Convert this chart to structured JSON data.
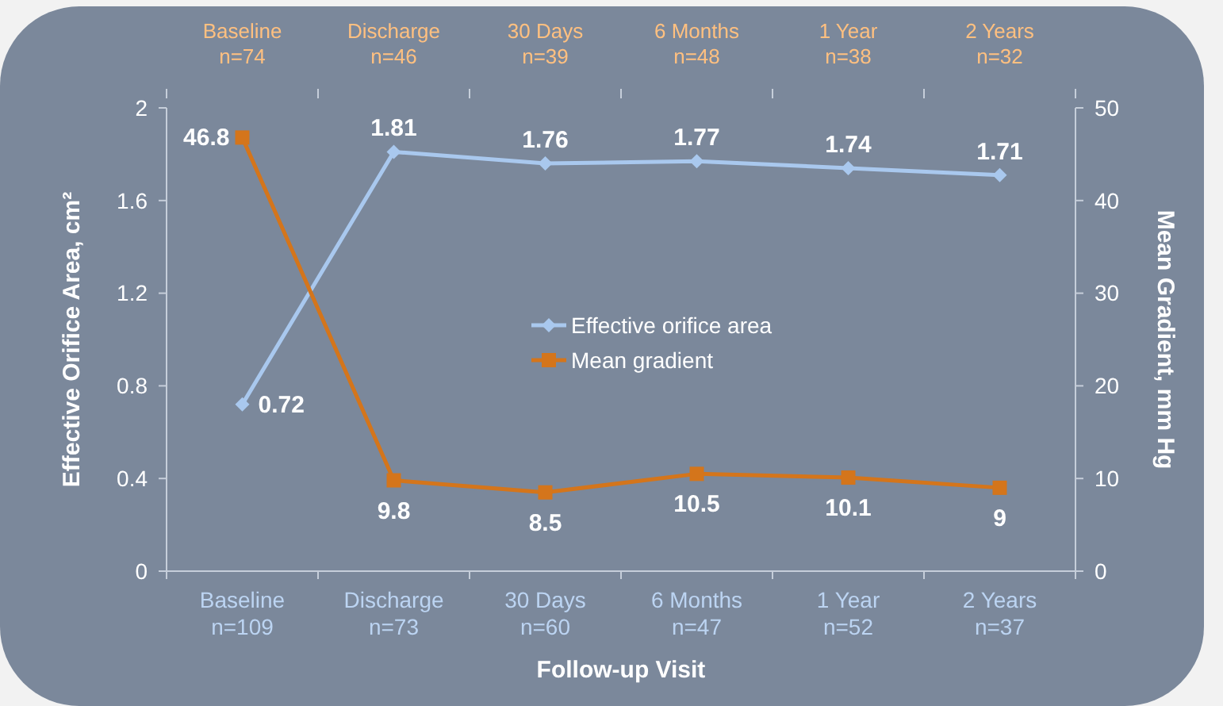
{
  "chart_data": {
    "type": "line",
    "xlabel": "Follow-up Visit",
    "ylabel": "Effective Orifice Area, cm²",
    "y2label": "Mean Gradient, mm Hg",
    "categories": [
      "Baseline\nn=109",
      "Discharge\nn=73",
      "30 Days\nn=60",
      "6 Months\nn=47",
      "1 Year\nn=52",
      "2 Years\nn=37"
    ],
    "annotations": [
      "Baseline\nn=74",
      "Discharge\nn=46",
      "30 Days\nn=39",
      "6 Months\nn=48",
      "1 Year\nn=38",
      "2 Years\nn=32"
    ],
    "series": [
      {
        "name": "Effective orifice area",
        "color": "#a9c8ee",
        "marker": "diamond",
        "values": [
          0.72,
          1.81,
          1.76,
          1.77,
          1.74,
          1.71
        ]
      },
      {
        "name": "Mean gradient",
        "color": "#d4751b",
        "marker": "square",
        "axis": "y2",
        "values": [
          46.8,
          9.8,
          8.5,
          10.5,
          10.1,
          9
        ]
      }
    ],
    "ylim": [
      0,
      2
    ],
    "yticks": [
      0,
      {
        "value": 0.4,
        "label": "0.4"
      },
      {
        "value": 0.8,
        "label": "0.8"
      },
      {
        "value": 1.2,
        "label": "1.2"
      },
      {
        "value": 1.6,
        "label": "1.6"
      },
      2
    ],
    "y2lim": [
      0,
      50
    ],
    "y2ticks": [
      0,
      10,
      20,
      30,
      40,
      50
    ],
    "data_labels": true,
    "legend": "center",
    "grid": false
  }
}
